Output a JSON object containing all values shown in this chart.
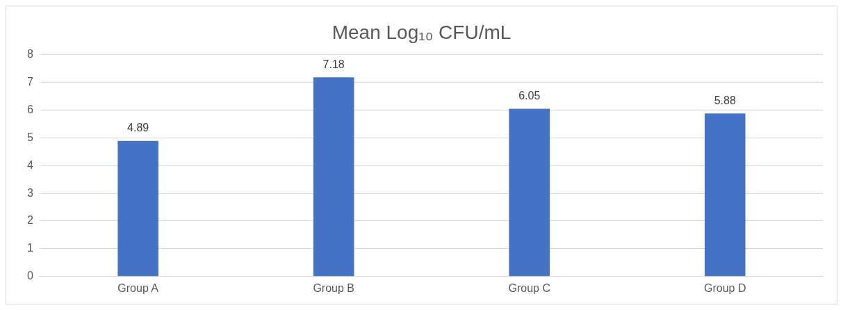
{
  "chart_data": {
    "type": "bar",
    "title": "Mean Log₁₀ CFU/mL",
    "categories": [
      "Group A",
      "Group B",
      "Group C",
      "Group D"
    ],
    "values": [
      4.89,
      7.18,
      6.05,
      5.88
    ],
    "color": "#4472c4",
    "ylim": [
      0,
      8
    ],
    "yticks": [
      0,
      1,
      2,
      3,
      4,
      5,
      6,
      7,
      8
    ],
    "grid": "y",
    "data_labels": true
  }
}
